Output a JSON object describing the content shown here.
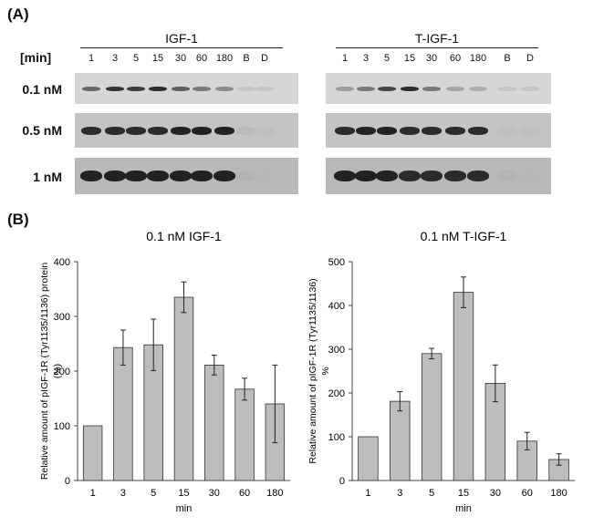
{
  "panel_a_label": "(A)",
  "panel_b_label": "(B)",
  "blot": {
    "time_header": "[min]",
    "groups": [
      {
        "name": "IGF-1",
        "lanes": [
          "1",
          "3",
          "5",
          "15",
          "30",
          "60",
          "180",
          "B",
          "D"
        ],
        "intensity": {
          "0.1 nM": [
            0.55,
            0.85,
            0.8,
            0.9,
            0.6,
            0.45,
            0.35,
            0.02,
            0.02
          ],
          "0.5 nM": [
            0.9,
            0.9,
            0.9,
            0.9,
            0.95,
            0.95,
            0.95,
            0.08,
            0.05
          ],
          "1 nM": [
            0.95,
            0.95,
            0.95,
            0.95,
            0.95,
            0.95,
            0.95,
            0.12,
            0.1
          ]
        }
      },
      {
        "name": "T-IGF-1",
        "lanes": [
          "1",
          "3",
          "5",
          "15",
          "30",
          "60",
          "180",
          "B",
          "D"
        ],
        "intensity": {
          "0.1 nM": [
            0.25,
            0.45,
            0.75,
            0.9,
            0.45,
            0.2,
            0.15,
            0.02,
            0.02
          ],
          "0.5 nM": [
            0.9,
            0.95,
            0.95,
            0.9,
            0.9,
            0.9,
            0.9,
            0.05,
            0.05
          ],
          "1 nM": [
            0.95,
            0.95,
            0.95,
            0.9,
            0.9,
            0.9,
            0.9,
            0.12,
            0.1
          ]
        }
      }
    ],
    "rows": [
      "0.1 nM",
      "0.5 nM",
      "1 nM"
    ]
  },
  "chart_data": [
    {
      "type": "bar",
      "title": "0.1 nM IGF-1",
      "categories": [
        "1",
        "3",
        "5",
        "15",
        "30",
        "60",
        "180"
      ],
      "values": [
        100,
        243,
        248,
        335,
        211,
        167,
        140
      ],
      "errors": [
        0,
        32,
        47,
        28,
        18,
        20,
        71
      ],
      "xlabel": "min",
      "ylabel": "Relative amount of pIGF-1R (Tyr1135/1136) protein (%)",
      "ylim": [
        0,
        400
      ],
      "yticks": [
        0,
        100,
        200,
        300,
        400
      ],
      "grid": false,
      "bar_color": "#bdbdbd"
    },
    {
      "type": "bar",
      "title": "0.1 nM T-IGF-1",
      "categories": [
        "1",
        "3",
        "5",
        "15",
        "30",
        "60",
        "180"
      ],
      "values": [
        100,
        181,
        290,
        430,
        222,
        90,
        48
      ],
      "errors": [
        0,
        22,
        12,
        35,
        42,
        20,
        13
      ],
      "xlabel": "min",
      "ylabel": "Relative amount of pIGF-1R (Tyr1135/1136) %",
      "ylim": [
        0,
        500
      ],
      "yticks": [
        0,
        100,
        200,
        300,
        400,
        500
      ],
      "grid": false,
      "bar_color": "#bdbdbd"
    }
  ]
}
